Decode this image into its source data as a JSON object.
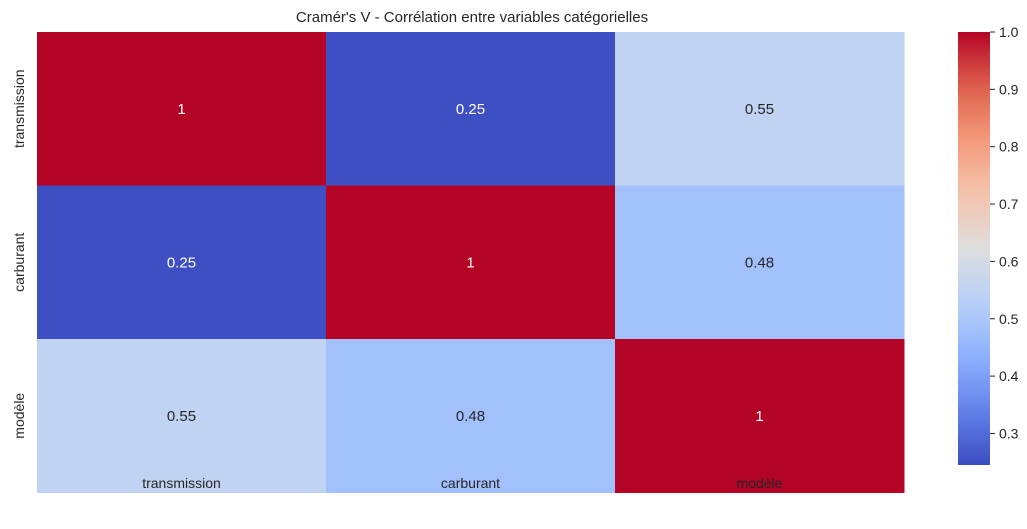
{
  "chart_data": {
    "type": "heatmap",
    "title": "Cramér's V - Corrélation entre variables catégorielles",
    "rows": [
      "transmission",
      "carburant",
      "modèle"
    ],
    "columns": [
      "transmission",
      "carburant",
      "modèle"
    ],
    "values": [
      [
        1,
        0.25,
        0.55
      ],
      [
        0.25,
        1,
        0.48
      ],
      [
        0.55,
        0.48,
        1
      ]
    ],
    "annotations": [
      [
        "1",
        "0.25",
        "0.55"
      ],
      [
        "0.25",
        "1",
        "0.48"
      ],
      [
        "0.55",
        "0.48",
        "1"
      ]
    ],
    "colormap": "coolwarm",
    "colorbar": {
      "vmin": 0.245,
      "vmax": 1.0,
      "ticks": [
        "0.3",
        "0.4",
        "0.5",
        "0.6",
        "0.7",
        "0.8",
        "0.9",
        "1.0"
      ],
      "tick_values": [
        0.3,
        0.4,
        0.5,
        0.6,
        0.7,
        0.8,
        0.9,
        1.0
      ]
    }
  }
}
